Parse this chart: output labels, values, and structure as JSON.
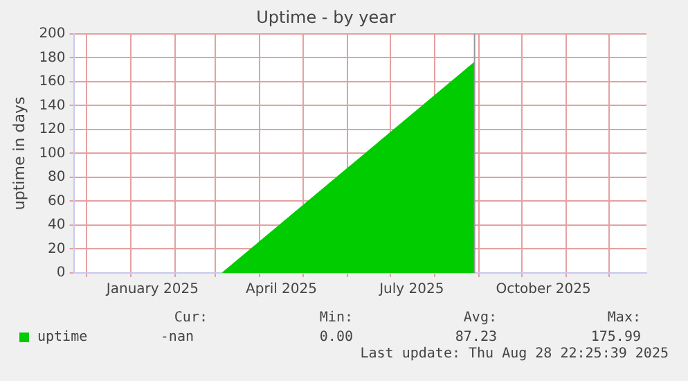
{
  "chart_data": {
    "type": "area",
    "title": "Uptime - by year",
    "ylabel": "uptime in days",
    "series": [
      {
        "name": "uptime",
        "color": "#00cc00",
        "x": [
          "2025-03-05T22:40",
          "2025-08-28T22:25"
        ],
        "values": [
          0,
          175.99
        ]
      }
    ],
    "xlim": [
      "2024-11-22",
      "2025-12-27"
    ],
    "xticks": [
      {
        "value": "2024-12-01",
        "label": null
      },
      {
        "value": "2025-01-01",
        "label": null
      },
      {
        "value": "2025-01-16",
        "label": "January 2025"
      },
      {
        "value": "2025-02-01",
        "label": null
      },
      {
        "value": "2025-03-01",
        "label": null
      },
      {
        "value": "2025-04-01",
        "label": null
      },
      {
        "value": "2025-04-16",
        "label": "April 2025"
      },
      {
        "value": "2025-05-01",
        "label": null
      },
      {
        "value": "2025-06-01",
        "label": null
      },
      {
        "value": "2025-07-01",
        "label": null
      },
      {
        "value": "2025-07-16",
        "label": "July 2025"
      },
      {
        "value": "2025-08-01",
        "label": null
      },
      {
        "value": "2025-09-01",
        "label": null
      },
      {
        "value": "2025-10-01",
        "label": null
      },
      {
        "value": "2025-10-16",
        "label": "October 2025"
      },
      {
        "value": "2025-11-01",
        "label": null
      },
      {
        "value": "2025-12-01",
        "label": null
      }
    ],
    "ylim": [
      0,
      200
    ],
    "yticks": [
      0,
      20,
      40,
      60,
      80,
      100,
      120,
      140,
      160,
      180,
      200
    ],
    "grid": true,
    "legend": "bottom",
    "ref_lines": [
      {
        "axis": "x",
        "value": "2025-08-28T22:25",
        "color": "#999999"
      }
    ],
    "annotations": [
      "Cur:",
      "Min:",
      "Avg:",
      "Max:",
      "-nan",
      "0.00",
      "87.23",
      "175.99",
      "Last update: Thu Aug 28 22:25:39 2025"
    ]
  }
}
